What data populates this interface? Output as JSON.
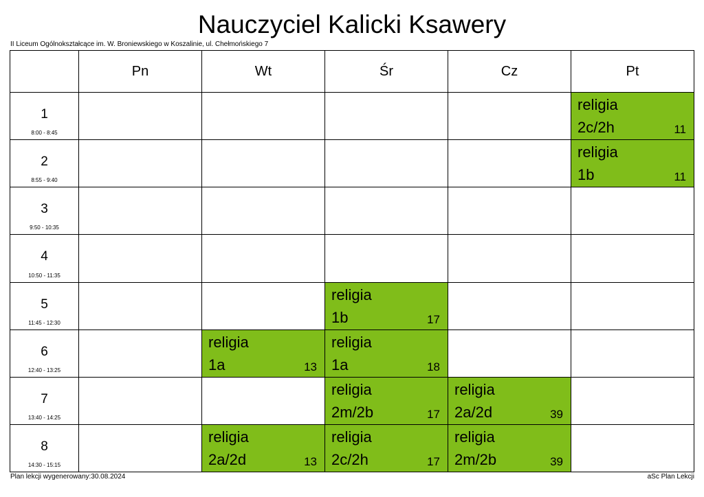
{
  "title": "Nauczyciel Kalicki Ksawery",
  "school": "II Liceum Ogólnokształcące im. W. Broniewskiego w Koszalinie, ul. Chełmońskiego 7",
  "days": [
    "Pn",
    "Wt",
    "Śr",
    "Cz",
    "Pt"
  ],
  "periods": [
    {
      "num": "1",
      "time": "8:00 - 8:45"
    },
    {
      "num": "2",
      "time": "8:55 - 9:40"
    },
    {
      "num": "3",
      "time": "9:50 - 10:35"
    },
    {
      "num": "4",
      "time": "10:50 - 11:35"
    },
    {
      "num": "5",
      "time": "11:45 - 12:30"
    },
    {
      "num": "6",
      "time": "12:40 - 13:25"
    },
    {
      "num": "7",
      "time": "13:40 - 14:25"
    },
    {
      "num": "8",
      "time": "14:30 - 15:15"
    }
  ],
  "lessons": [
    {
      "period": 1,
      "day": 5,
      "subject": "religia",
      "class": "2c/2h",
      "room": "11"
    },
    {
      "period": 2,
      "day": 5,
      "subject": "religia",
      "class": "1b",
      "room": "11"
    },
    {
      "period": 5,
      "day": 3,
      "subject": "religia",
      "class": "1b",
      "room": "17"
    },
    {
      "period": 6,
      "day": 2,
      "subject": "religia",
      "class": "1a",
      "room": "13"
    },
    {
      "period": 6,
      "day": 3,
      "subject": "religia",
      "class": "1a",
      "room": "18"
    },
    {
      "period": 7,
      "day": 3,
      "subject": "religia",
      "class": "2m/2b",
      "room": "17"
    },
    {
      "period": 7,
      "day": 4,
      "subject": "religia",
      "class": "2a/2d",
      "room": "39"
    },
    {
      "period": 8,
      "day": 2,
      "subject": "religia",
      "class": "2a/2d",
      "room": "13"
    },
    {
      "period": 8,
      "day": 3,
      "subject": "religia",
      "class": "2c/2h",
      "room": "17"
    },
    {
      "period": 8,
      "day": 4,
      "subject": "religia",
      "class": "2m/2b",
      "room": "39"
    }
  ],
  "colors": {
    "lesson": "#80bd1a"
  },
  "footer": {
    "generated": "Plan lekcji wygenerowany:30.08.2024",
    "app": "aSc Plan Lekcji"
  }
}
